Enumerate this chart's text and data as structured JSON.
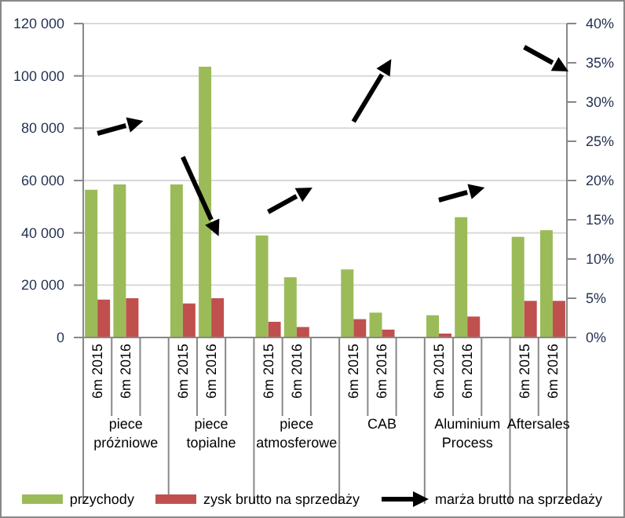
{
  "chart_data": {
    "type": "bar",
    "categories": [
      "6m 2015",
      "6m 2016",
      null,
      "6m 2015",
      "6m 2016",
      null,
      "6m 2015",
      "6m 2016",
      null,
      "6m 2015",
      "6m 2016",
      null,
      "6m 2015",
      "6m 2016",
      null,
      "6m 2015",
      "6m 2016"
    ],
    "series": [
      {
        "name": "przychody",
        "color": "#9bbb59",
        "values": [
          56500,
          58500,
          null,
          58500,
          103500,
          null,
          39000,
          23000,
          null,
          26000,
          9500,
          null,
          8500,
          46000,
          null,
          38500,
          41000
        ]
      },
      {
        "name": "zysk brutto na sprzedaży",
        "color": "#c0504d",
        "values": [
          14500,
          15000,
          null,
          13000,
          15000,
          null,
          6000,
          4000,
          null,
          7000,
          3000,
          null,
          1500,
          8000,
          null,
          14000,
          14000
        ]
      },
      {
        "name": "marża brutto na sprzedaży",
        "type": "line",
        "axis": "y2",
        "color": "#000000",
        "marker": "none",
        "values": [
          26,
          27,
          null,
          23,
          15,
          null,
          16,
          18,
          null,
          27.5,
          33.5,
          null,
          17.5,
          18.5,
          null,
          37,
          35
        ]
      }
    ],
    "ylim": [
      0,
      120000
    ],
    "yticks": [
      {
        "value": 0,
        "label": "0"
      },
      {
        "value": 20000,
        "label": "20 000"
      },
      {
        "value": 40000,
        "label": "40 000"
      },
      {
        "value": 60000,
        "label": "60 000"
      },
      {
        "value": 80000,
        "label": "80 000"
      },
      {
        "value": 100000,
        "label": "100 000"
      },
      {
        "value": 120000,
        "label": "120 000"
      }
    ],
    "y2lim": [
      0,
      40
    ],
    "y2ticks": [
      {
        "value": 0,
        "label": "0%"
      },
      {
        "value": 5,
        "label": "5%"
      },
      {
        "value": 10,
        "label": "10%"
      },
      {
        "value": 15,
        "label": "15%"
      },
      {
        "value": 20,
        "label": "20%"
      },
      {
        "value": 25,
        "label": "25%"
      },
      {
        "value": 30,
        "label": "30%"
      },
      {
        "value": 35,
        "label": "35%"
      },
      {
        "value": 40,
        "label": "40%"
      }
    ],
    "annotations": [
      "piece próżniowe",
      "piece topialne",
      "piece atmosferowe",
      "CAB",
      "Aluminium Process",
      "Aftersales"
    ],
    "grid": "y",
    "legend": "bottom"
  }
}
